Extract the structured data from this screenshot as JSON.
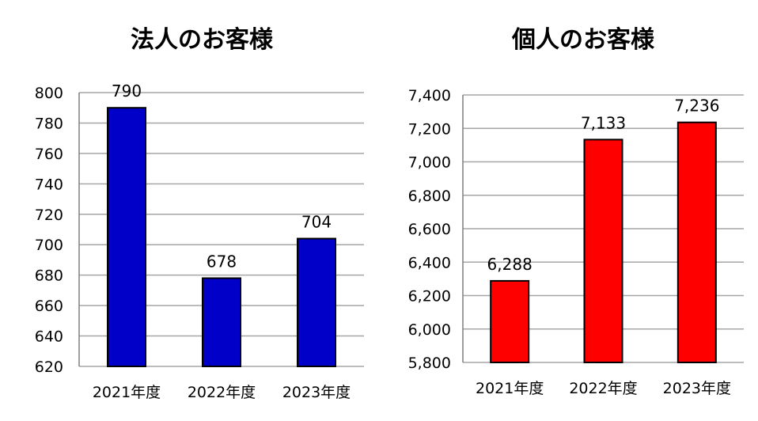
{
  "colors": {
    "background": "#ffffff",
    "gridline": "#a6a6a6",
    "axis": "#7f7f7f",
    "text": "#000000",
    "bar_outline": "#000000"
  },
  "chart_data": [
    {
      "type": "bar",
      "title": "法人のお客様",
      "categories": [
        "2021年度",
        "2022年度",
        "2023年度"
      ],
      "values": [
        790,
        678,
        704
      ],
      "data_labels": [
        "790",
        "678",
        "704"
      ],
      "ylim": [
        620,
        800
      ],
      "y_ticks": [
        620,
        640,
        660,
        680,
        700,
        720,
        740,
        760,
        780,
        800
      ],
      "y_tick_labels": [
        "620",
        "640",
        "660",
        "680",
        "700",
        "720",
        "740",
        "760",
        "780",
        "800"
      ],
      "bar_color": "#0000c8",
      "grid": true
    },
    {
      "type": "bar",
      "title": "個人のお客様",
      "categories": [
        "2021年度",
        "2022年度",
        "2023年度"
      ],
      "values": [
        6288,
        7133,
        7236
      ],
      "data_labels": [
        "6,288",
        "7,133",
        "7,236"
      ],
      "ylim": [
        5800,
        7400
      ],
      "y_ticks": [
        5800,
        6000,
        6200,
        6400,
        6600,
        6800,
        7000,
        7200,
        7400
      ],
      "y_tick_labels": [
        "5,800",
        "6,000",
        "6,200",
        "6,400",
        "6,600",
        "6,800",
        "7,000",
        "7,200",
        "7,400"
      ],
      "bar_color": "#ff0000",
      "grid": true
    }
  ]
}
